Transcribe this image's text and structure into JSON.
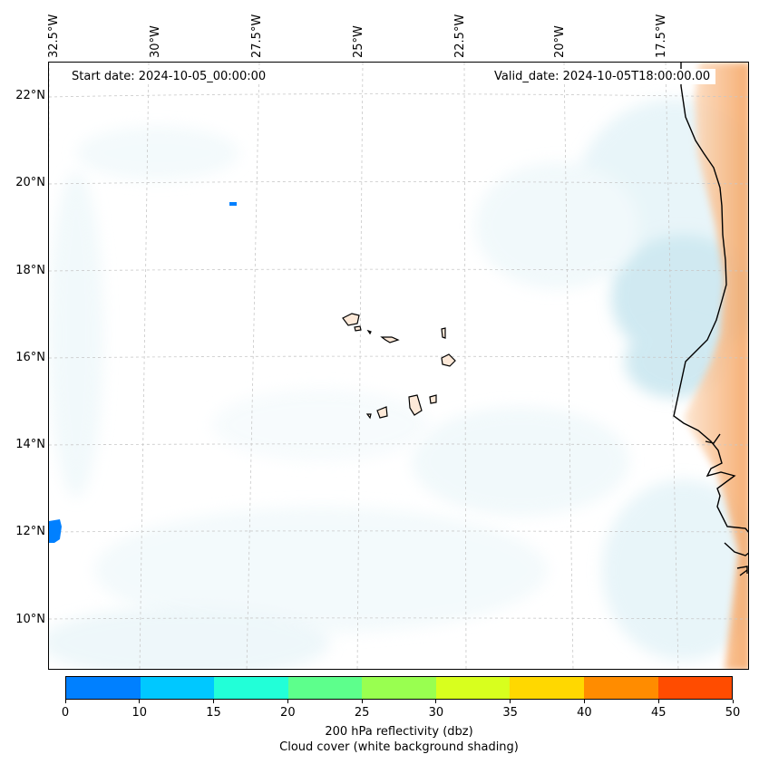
{
  "map": {
    "start_label": "Start date: 2024-10-05_00:00:00",
    "valid_label": "Valid_date: 2024-10-05T18:00:00.00",
    "lon_labels": [
      "32.5°W",
      "30°W",
      "27.5°W",
      "25°W",
      "22.5°W",
      "20°W",
      "17.5°W"
    ],
    "lat_labels": [
      "22°N",
      "20°N",
      "18°N",
      "16°N",
      "14°N",
      "12°N",
      "10°N"
    ],
    "cloud_color": "#a9d8e6",
    "land_heat_color": "#f5a05a",
    "echo_color": "#0080ff"
  },
  "colorbar": {
    "ticks": [
      "0",
      "10",
      "15",
      "20",
      "25",
      "30",
      "35",
      "40",
      "45",
      "50"
    ],
    "colors": [
      "#0080ff",
      "#00c8ff",
      "#22ffd8",
      "#5dff8c",
      "#99ff50",
      "#d8ff1e",
      "#ffd800",
      "#ff8c00",
      "#ff4c00"
    ],
    "title": "200 hPa reflectivity (dbz)",
    "subtitle": "Cloud cover (white background shading)"
  }
}
